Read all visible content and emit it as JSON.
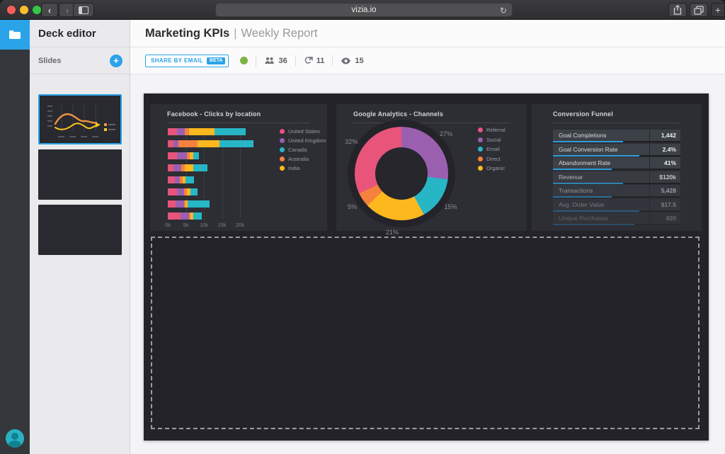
{
  "browser": {
    "url": "vizia.io"
  },
  "deck_panel": {
    "title": "Deck editor",
    "section_label": "Slides"
  },
  "header": {
    "title": "Marketing KPIs",
    "divider": "|",
    "subtitle": "Weekly Report"
  },
  "toolbar": {
    "share_button": "SHARE BY EMAIL",
    "beta_badge": "BETA",
    "collaborators": "36",
    "shares": "11",
    "views": "15"
  },
  "colors": {
    "accent": "#2ba3e8",
    "presence_green": "#7cb342",
    "funnel_bar_blue": "#2d9cdb"
  },
  "chart_data": [
    {
      "type": "bar",
      "orientation": "horizontal",
      "stacked": true,
      "title": "Facebook - Clicks by location",
      "x_ticks": [
        "0k",
        "5k",
        "10k",
        "15k",
        "20k"
      ],
      "xlim_k": [
        0,
        25
      ],
      "grid": "vertical-dotted",
      "legend_position": "right",
      "series": [
        {
          "name": "United States",
          "color": "#e8547a",
          "values_k": [
            2.5,
            1.5,
            2.5,
            1.6,
            2.0,
            2.5,
            2.2,
            3.5
          ]
        },
        {
          "name": "United Kingdom",
          "color": "#9b5fb0",
          "values_k": [
            2.2,
            1.5,
            2.7,
            2.2,
            1.3,
            2.0,
            2.3,
            2.3
          ]
        },
        {
          "name": "Australia",
          "color": "#f5813e",
          "values_k": [
            1.1,
            5.2,
            0.9,
            0.9,
            0.8,
            0.7,
            0.4,
            0.5
          ]
        },
        {
          "name": "India",
          "color": "#fdb81e",
          "values_k": [
            7.2,
            6.2,
            0.9,
            2.3,
            0.8,
            1.1,
            0.5,
            0.8
          ]
        },
        {
          "name": "Canada",
          "color": "#27b6c6",
          "values_k": [
            8.5,
            9.4,
            1.7,
            4.0,
            2.4,
            2.0,
            6.2,
            2.4
          ]
        }
      ],
      "legend": [
        {
          "label": "United States",
          "color": "#e8547a"
        },
        {
          "label": "United Kingdom",
          "color": "#9b5fb0"
        },
        {
          "label": "Canada",
          "color": "#27b6c6"
        },
        {
          "label": "Australia",
          "color": "#f5813e"
        },
        {
          "label": "India",
          "color": "#fdb81e"
        }
      ]
    },
    {
      "type": "pie",
      "donut": true,
      "title": "Google Analytics - Channels",
      "legend_position": "right",
      "slices": [
        {
          "label": "Social",
          "pct": 27,
          "color": "#9b5fb0"
        },
        {
          "label": "Email",
          "pct": 15,
          "color": "#27b6c6"
        },
        {
          "label": "Organic",
          "pct": 21,
          "color": "#fdb81e"
        },
        {
          "label": "Direct",
          "pct": 5,
          "color": "#f5813e"
        },
        {
          "label": "Referral",
          "pct": 32,
          "color": "#e8547a"
        }
      ],
      "legend": [
        {
          "label": "Referral",
          "color": "#e8547a"
        },
        {
          "label": "Social",
          "color": "#9b5fb0"
        },
        {
          "label": "Email",
          "color": "#27b6c6"
        },
        {
          "label": "Direct",
          "color": "#f5813e"
        },
        {
          "label": "Organic",
          "color": "#fdb81e"
        }
      ]
    },
    {
      "type": "table",
      "title": "Conversion Funnel",
      "rows": [
        {
          "label": "Goal Completions",
          "value": "1,442",
          "bar_pct": 55
        },
        {
          "label": "Goal Conversion Rate",
          "value": "2.4%",
          "bar_pct": 68
        },
        {
          "label": "Abandonment Rate",
          "value": "41%",
          "bar_pct": 46
        },
        {
          "label": "Revenue",
          "value": "$120k",
          "bar_pct": 55
        },
        {
          "label": "Transactions",
          "value": "5,428",
          "bar_pct": 46
        },
        {
          "label": "Avg. Order Value",
          "value": "$17.5",
          "bar_pct": 68
        },
        {
          "label": "Unique Purchases",
          "value": "820",
          "bar_pct": 64
        }
      ]
    }
  ]
}
